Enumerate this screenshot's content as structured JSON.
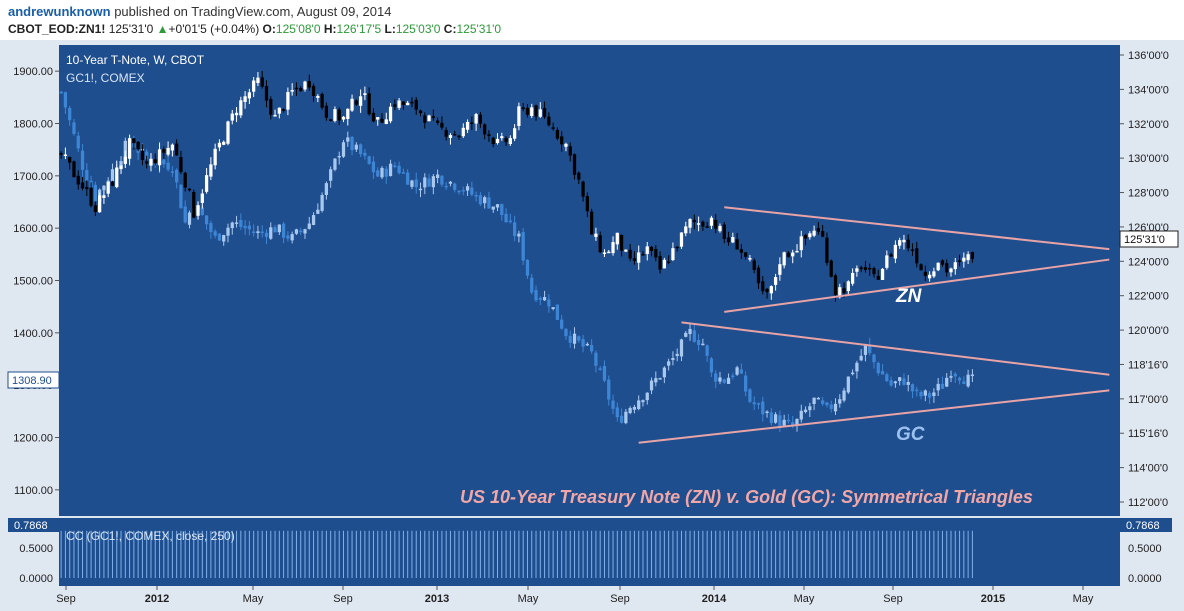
{
  "header": {
    "author": "andrewunknown",
    "published_text": "published on TradingView.com, August 09, 2014",
    "symbol": "CBOT_EOD:ZN1!",
    "last": "125'31'0",
    "arrow": "▲",
    "change": "+0'01'5 (+0.04%)",
    "o_label": "O:",
    "o_value": "125'08'0",
    "h_label": "H:",
    "h_value": "126'17'5",
    "l_label": "L:",
    "l_value": "125'03'0",
    "c_label": "C:",
    "c_value": "125'31'0"
  },
  "legend": {
    "main": "10-Year T-Note, W, CBOT",
    "overlay": "GC1!, COMEX",
    "indicator": "CC (GC1!, COMEX, close, 250)"
  },
  "annotations": {
    "title": "US 10-Year Treasury Note (ZN) v. Gold (GC): Symmetrical Triangles",
    "zn_label": "ZN",
    "gc_label": "GC"
  },
  "price_badges": {
    "left": "1308.90",
    "right": "125'31'0",
    "ind_left": "0.7868",
    "ind_right": "0.7868"
  },
  "colors": {
    "background": "#1f4e8f",
    "zn_up": "#ffffff",
    "zn_down": "#000000",
    "gc_up": "#a9c8ee",
    "gc_down": "#3d86d6",
    "trendline": "#e8a3a6",
    "title": "#f2a7a7",
    "gc_label": "#9cc1ee",
    "indicator": "#7fb0ea"
  },
  "chart_data": {
    "type": "candlestick",
    "x_ticks": [
      "Sep",
      "2012",
      "May",
      "Sep",
      "2013",
      "May",
      "Sep",
      "2014",
      "May",
      "Sep",
      "2015",
      "May"
    ],
    "left_axis": {
      "ticks": [
        "1900.00",
        "1800.00",
        "1700.00",
        "1600.00",
        "1500.00",
        "1400.00",
        "1300.00",
        "1200.00",
        "1100.00"
      ],
      "range": [
        1050,
        1950
      ]
    },
    "right_axis": {
      "ticks": [
        "136'00'0",
        "134'00'0",
        "132'00'0",
        "130'00'0",
        "128'00'0",
        "126'00'0",
        "124'00'0",
        "122'00'0",
        "120'00'0",
        "118'16'0",
        "117'00'0",
        "115'16'0",
        "114'00'0",
        "112'00'0"
      ]
    },
    "indicator_axis": {
      "ticks": [
        "0.5000",
        "0.0000"
      ],
      "range": [
        0,
        0.9
      ],
      "last": 0.7868
    },
    "series": [
      {
        "name": "10-Year T-Note, W, CBOT",
        "anchors": [
          [
            0,
            1740
          ],
          [
            5,
            1680
          ],
          [
            8,
            1640
          ],
          [
            12,
            1690
          ],
          [
            16,
            1760
          ],
          [
            20,
            1720
          ],
          [
            26,
            1760
          ],
          [
            29,
            1690
          ],
          [
            31,
            1630
          ],
          [
            36,
            1740
          ],
          [
            41,
            1830
          ],
          [
            46,
            1880
          ],
          [
            50,
            1810
          ],
          [
            54,
            1860
          ],
          [
            58,
            1880
          ],
          [
            62,
            1820
          ],
          [
            66,
            1810
          ],
          [
            70,
            1860
          ],
          [
            74,
            1800
          ],
          [
            78,
            1840
          ],
          [
            83,
            1830
          ],
          [
            88,
            1790
          ],
          [
            93,
            1780
          ],
          [
            97,
            1810
          ],
          [
            102,
            1760
          ],
          [
            105,
            1770
          ],
          [
            107,
            1820
          ],
          [
            110,
            1830
          ],
          [
            114,
            1800
          ],
          [
            118,
            1760
          ],
          [
            121,
            1690
          ],
          [
            124,
            1590
          ],
          [
            127,
            1550
          ],
          [
            130,
            1580
          ],
          [
            133,
            1530
          ],
          [
            137,
            1560
          ],
          [
            140,
            1520
          ],
          [
            144,
            1570
          ],
          [
            147,
            1610
          ],
          [
            150,
            1610
          ],
          [
            152,
            1620
          ],
          [
            155,
            1580
          ],
          [
            158,
            1570
          ],
          [
            161,
            1530
          ],
          [
            164,
            1470
          ],
          [
            166,
            1480
          ],
          [
            168,
            1540
          ],
          [
            171,
            1560
          ],
          [
            174,
            1580
          ],
          [
            176,
            1600
          ],
          [
            178,
            1580
          ],
          [
            181,
            1480
          ],
          [
            184,
            1490
          ],
          [
            187,
            1530
          ],
          [
            190,
            1500
          ],
          [
            193,
            1540
          ],
          [
            196,
            1580
          ],
          [
            199,
            1560
          ],
          [
            202,
            1510
          ],
          [
            205,
            1540
          ],
          [
            207,
            1520
          ],
          [
            210,
            1530
          ],
          [
            213,
            1550
          ]
        ]
      },
      {
        "name": "GC1!, COMEX",
        "anchors": [
          [
            0,
            1860
          ],
          [
            5,
            1720
          ],
          [
            8,
            1660
          ],
          [
            12,
            1710
          ],
          [
            16,
            1770
          ],
          [
            20,
            1730
          ],
          [
            26,
            1720
          ],
          [
            29,
            1610
          ],
          [
            31,
            1650
          ],
          [
            36,
            1580
          ],
          [
            40,
            1610
          ],
          [
            46,
            1590
          ],
          [
            50,
            1600
          ],
          [
            54,
            1580
          ],
          [
            58,
            1610
          ],
          [
            62,
            1680
          ],
          [
            66,
            1770
          ],
          [
            70,
            1740
          ],
          [
            74,
            1700
          ],
          [
            78,
            1720
          ],
          [
            83,
            1680
          ],
          [
            88,
            1700
          ],
          [
            93,
            1680
          ],
          [
            97,
            1660
          ],
          [
            102,
            1640
          ],
          [
            105,
            1600
          ],
          [
            107,
            1580
          ],
          [
            110,
            1480
          ],
          [
            114,
            1460
          ],
          [
            118,
            1400
          ],
          [
            121,
            1380
          ],
          [
            124,
            1360
          ],
          [
            127,
            1300
          ],
          [
            130,
            1230
          ],
          [
            133,
            1260
          ],
          [
            137,
            1290
          ],
          [
            140,
            1320
          ],
          [
            143,
            1350
          ],
          [
            147,
            1400
          ],
          [
            150,
            1380
          ],
          [
            152,
            1320
          ],
          [
            155,
            1310
          ],
          [
            158,
            1330
          ],
          [
            161,
            1270
          ],
          [
            164,
            1250
          ],
          [
            166,
            1240
          ],
          [
            168,
            1230
          ],
          [
            171,
            1220
          ],
          [
            174,
            1250
          ],
          [
            176,
            1270
          ],
          [
            179,
            1250
          ],
          [
            182,
            1280
          ],
          [
            185,
            1330
          ],
          [
            188,
            1370
          ],
          [
            191,
            1330
          ],
          [
            194,
            1300
          ],
          [
            197,
            1310
          ],
          [
            200,
            1280
          ],
          [
            203,
            1280
          ],
          [
            206,
            1300
          ],
          [
            208,
            1330
          ],
          [
            210,
            1320
          ],
          [
            212,
            1310
          ],
          [
            213,
            1308
          ]
        ]
      }
    ],
    "trendlines": [
      {
        "name": "ZN upper",
        "from": [
          155,
          1640
        ],
        "to": [
          245,
          1560
        ]
      },
      {
        "name": "ZN lower",
        "from": [
          155,
          1440
        ],
        "to": [
          245,
          1540
        ]
      },
      {
        "name": "GC upper",
        "from": [
          145,
          1420
        ],
        "to": [
          245,
          1320
        ]
      },
      {
        "name": "GC lower",
        "from": [
          135,
          1190
        ],
        "to": [
          245,
          1290
        ]
      }
    ]
  }
}
